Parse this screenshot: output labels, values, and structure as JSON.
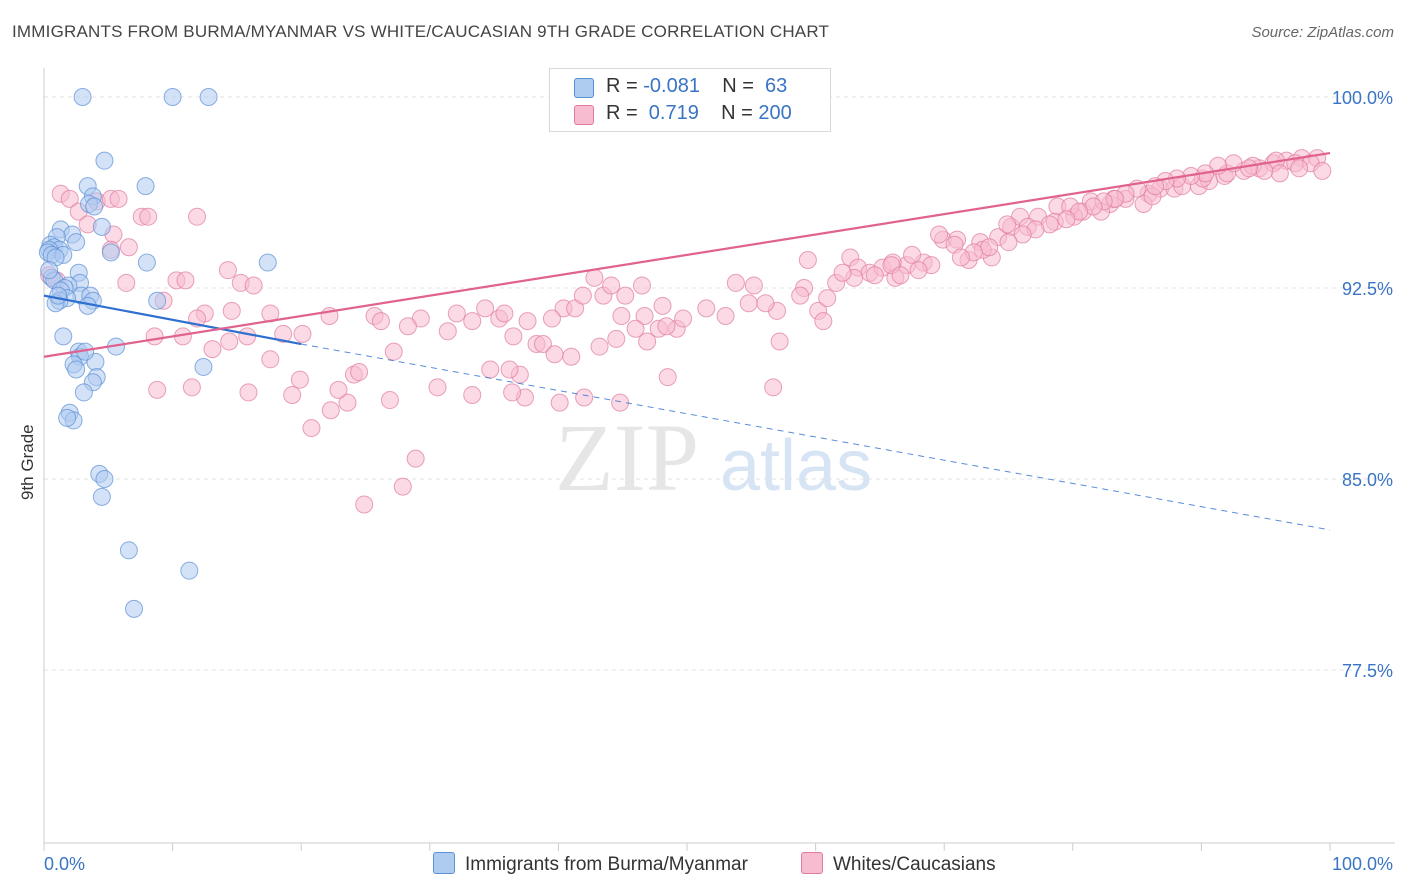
{
  "title": "IMMIGRANTS FROM BURMA/MYANMAR VS WHITE/CAUCASIAN 9TH GRADE CORRELATION CHART",
  "source": "Source: ZipAtlas.com",
  "watermark": {
    "zip": "ZIP",
    "atlas": "atlas"
  },
  "legend": {
    "rows": [
      {
        "r_label": "R = ",
        "r_value": "-0.081",
        "n_label": "N = ",
        "n_value": " 63",
        "color": "#aecbf0",
        "border": "#5b8fd6"
      },
      {
        "r_label": "R = ",
        "r_value": " 0.719",
        "n_label": "N = ",
        "n_value": "200",
        "color": "#f7bcd0",
        "border": "#e07aa0"
      }
    ]
  },
  "bottom_legend": [
    {
      "label": "Immigrants from Burma/Myanmar",
      "color": "#aecbf0",
      "border": "#5b8fd6"
    },
    {
      "label": "Whites/Caucasians",
      "color": "#f7bcd0",
      "border": "#e07aa0"
    }
  ],
  "chart_data": {
    "type": "scatter",
    "ylabel": "9th Grade",
    "xlim": [
      0,
      100
    ],
    "ylim": [
      71.5,
      101.5
    ],
    "x_tick_labels": [
      "0.0%",
      "100.0%"
    ],
    "y_ticks": [
      77.5,
      85.0,
      92.5,
      100.0
    ],
    "y_tick_labels": [
      "77.5%",
      "85.0%",
      "92.5%",
      "100.0%"
    ],
    "grid": true,
    "series": [
      {
        "name": "Immigrants from Burma/Myanmar",
        "color": "#aecbf0",
        "stroke": "#5b8fd6",
        "trend": {
          "x0": 0,
          "y0": 92.2,
          "x1": 20,
          "y1": 90.3,
          "dashed_to_x": 100,
          "dashed_to_y": 83.0,
          "color": "#2f6fd0"
        },
        "points": [
          [
            3,
            100
          ],
          [
            10,
            100
          ],
          [
            12.8,
            100
          ],
          [
            4.7,
            97.5
          ],
          [
            3.4,
            96.5
          ],
          [
            7.9,
            96.5
          ],
          [
            3.8,
            96.1
          ],
          [
            3.5,
            95.8
          ],
          [
            3.9,
            95.7
          ],
          [
            4.5,
            94.9
          ],
          [
            1.3,
            94.8
          ],
          [
            2.2,
            94.6
          ],
          [
            1.0,
            94.5
          ],
          [
            2.5,
            94.3
          ],
          [
            0.5,
            94.2
          ],
          [
            0.8,
            94.1
          ],
          [
            1.2,
            94.0
          ],
          [
            0.4,
            94.0
          ],
          [
            0.3,
            93.9
          ],
          [
            0.6,
            93.8
          ],
          [
            1.5,
            93.8
          ],
          [
            0.9,
            93.7
          ],
          [
            5.2,
            93.9
          ],
          [
            8.0,
            93.5
          ],
          [
            17.4,
            93.5
          ],
          [
            2.7,
            93.1
          ],
          [
            0.6,
            92.9
          ],
          [
            0.8,
            92.8
          ],
          [
            2.8,
            92.7
          ],
          [
            1.9,
            92.6
          ],
          [
            1.6,
            92.5
          ],
          [
            1.3,
            92.4
          ],
          [
            2.9,
            92.2
          ],
          [
            3.6,
            92.2
          ],
          [
            1.8,
            92.1
          ],
          [
            1.2,
            92.0
          ],
          [
            3.8,
            92.0
          ],
          [
            0.9,
            91.9
          ],
          [
            3.4,
            91.8
          ],
          [
            8.8,
            92.0
          ],
          [
            1.5,
            90.6
          ],
          [
            5.6,
            90.2
          ],
          [
            2.7,
            90.0
          ],
          [
            2.8,
            89.8
          ],
          [
            4.0,
            89.6
          ],
          [
            2.3,
            89.5
          ],
          [
            12.4,
            89.4
          ],
          [
            2.5,
            89.3
          ],
          [
            4.1,
            89.0
          ],
          [
            3.8,
            88.8
          ],
          [
            3.1,
            88.4
          ],
          [
            2.0,
            87.6
          ],
          [
            2.3,
            87.3
          ],
          [
            4.3,
            85.2
          ],
          [
            4.7,
            85.0
          ],
          [
            4.5,
            84.3
          ],
          [
            6.6,
            82.2
          ],
          [
            11.3,
            81.4
          ],
          [
            7.0,
            79.9
          ],
          [
            1.8,
            87.4
          ],
          [
            3.2,
            90.0
          ],
          [
            0.4,
            93.2
          ],
          [
            1.1,
            92.2
          ]
        ]
      },
      {
        "name": "Whites/Caucasians",
        "color": "#f7bcd0",
        "stroke": "#e07aa0",
        "trend": {
          "x0": 0,
          "y0": 89.8,
          "x1": 100,
          "y1": 97.8,
          "color": "#e0628f"
        },
        "points": [
          [
            1.3,
            96.2
          ],
          [
            2.0,
            96.0
          ],
          [
            2.7,
            95.5
          ],
          [
            4.1,
            95.9
          ],
          [
            5.2,
            96.0
          ],
          [
            5.8,
            96.0
          ],
          [
            7.6,
            95.3
          ],
          [
            8.1,
            95.3
          ],
          [
            11.9,
            95.3
          ],
          [
            3.4,
            95.0
          ],
          [
            5.4,
            94.6
          ],
          [
            6.6,
            94.1
          ],
          [
            5.2,
            94.0
          ],
          [
            0.4,
            93.0
          ],
          [
            1.0,
            92.8
          ],
          [
            14.3,
            93.2
          ],
          [
            10.3,
            92.8
          ],
          [
            11.0,
            92.8
          ],
          [
            15.3,
            92.7
          ],
          [
            16.3,
            92.6
          ],
          [
            6.4,
            92.7
          ],
          [
            9.3,
            92.0
          ],
          [
            12.5,
            91.5
          ],
          [
            14.6,
            91.6
          ],
          [
            11.9,
            91.3
          ],
          [
            17.6,
            91.5
          ],
          [
            22.2,
            91.4
          ],
          [
            25.7,
            91.4
          ],
          [
            29.3,
            91.3
          ],
          [
            28.3,
            91.0
          ],
          [
            26.2,
            91.2
          ],
          [
            32.1,
            91.5
          ],
          [
            33.3,
            91.2
          ],
          [
            34.3,
            91.7
          ],
          [
            31.4,
            90.8
          ],
          [
            35.4,
            91.3
          ],
          [
            35.8,
            91.5
          ],
          [
            36.5,
            90.6
          ],
          [
            34.7,
            89.3
          ],
          [
            37.6,
            91.2
          ],
          [
            38.3,
            90.3
          ],
          [
            37.0,
            89.1
          ],
          [
            33.3,
            88.3
          ],
          [
            30.6,
            88.6
          ],
          [
            37.4,
            88.2
          ],
          [
            40.4,
            91.7
          ],
          [
            41.3,
            91.7
          ],
          [
            42.8,
            92.9
          ],
          [
            41.9,
            92.2
          ],
          [
            43.5,
            92.2
          ],
          [
            39.5,
            91.3
          ],
          [
            38.8,
            90.3
          ],
          [
            44.1,
            92.6
          ],
          [
            46.5,
            92.6
          ],
          [
            45.2,
            92.2
          ],
          [
            44.9,
            91.4
          ],
          [
            46.7,
            91.4
          ],
          [
            46.9,
            90.4
          ],
          [
            47.8,
            90.9
          ],
          [
            49.2,
            90.9
          ],
          [
            48.1,
            91.8
          ],
          [
            53.8,
            92.7
          ],
          [
            55.2,
            92.6
          ],
          [
            54.8,
            91.9
          ],
          [
            57.0,
            91.6
          ],
          [
            57.2,
            90.4
          ],
          [
            56.7,
            88.6
          ],
          [
            59.1,
            92.5
          ],
          [
            60.2,
            91.6
          ],
          [
            60.6,
            91.2
          ],
          [
            60.9,
            92.1
          ],
          [
            59.4,
            93.6
          ],
          [
            62.7,
            93.7
          ],
          [
            63.3,
            93.3
          ],
          [
            64.2,
            93.1
          ],
          [
            65.2,
            93.3
          ],
          [
            66.2,
            92.9
          ],
          [
            67.1,
            93.4
          ],
          [
            68.4,
            93.5
          ],
          [
            69.9,
            94.4
          ],
          [
            71.0,
            94.4
          ],
          [
            71.9,
            93.6
          ],
          [
            73.7,
            93.7
          ],
          [
            72.8,
            94.3
          ],
          [
            74.2,
            94.5
          ],
          [
            75.2,
            94.9
          ],
          [
            75.9,
            95.3
          ],
          [
            77.3,
            95.3
          ],
          [
            78.8,
            95.7
          ],
          [
            80.8,
            95.5
          ],
          [
            81.4,
            95.9
          ],
          [
            82.9,
            95.8
          ],
          [
            84.1,
            96.0
          ],
          [
            85.9,
            96.2
          ],
          [
            86.8,
            96.4
          ],
          [
            87.9,
            96.4
          ],
          [
            89.8,
            96.5
          ],
          [
            90.6,
            96.7
          ],
          [
            91.8,
            96.9
          ],
          [
            93.3,
            97.1
          ],
          [
            94.5,
            97.2
          ],
          [
            95.6,
            97.4
          ],
          [
            96.6,
            97.5
          ],
          [
            97.8,
            97.6
          ],
          [
            99.0,
            97.6
          ],
          [
            85.5,
            95.8
          ],
          [
            82.2,
            95.5
          ],
          [
            80.1,
            95.3
          ],
          [
            78.6,
            95.1
          ],
          [
            76.5,
            94.9
          ],
          [
            73.0,
            94.0
          ],
          [
            70.8,
            94.2
          ],
          [
            67.5,
            93.8
          ],
          [
            66.0,
            93.5
          ],
          [
            64.6,
            93.0
          ],
          [
            63.0,
            92.9
          ],
          [
            61.6,
            92.7
          ],
          [
            58.8,
            92.2
          ],
          [
            56.1,
            91.9
          ],
          [
            53.0,
            91.4
          ],
          [
            51.5,
            91.7
          ],
          [
            49.7,
            91.3
          ],
          [
            48.4,
            91.0
          ],
          [
            46.0,
            90.9
          ],
          [
            44.5,
            90.5
          ],
          [
            43.2,
            90.2
          ],
          [
            41.0,
            89.8
          ],
          [
            39.7,
            89.9
          ],
          [
            36.2,
            89.3
          ],
          [
            27.2,
            90.0
          ],
          [
            24.1,
            89.1
          ],
          [
            23.6,
            88.0
          ],
          [
            22.3,
            87.7
          ],
          [
            20.8,
            87.0
          ],
          [
            19.9,
            88.9
          ],
          [
            22.9,
            88.5
          ],
          [
            24.5,
            89.2
          ],
          [
            26.9,
            88.1
          ],
          [
            28.9,
            85.8
          ],
          [
            27.9,
            84.7
          ],
          [
            24.9,
            84.0
          ],
          [
            18.6,
            90.7
          ],
          [
            20.1,
            90.7
          ],
          [
            17.6,
            89.7
          ],
          [
            13.1,
            90.1
          ],
          [
            15.8,
            90.6
          ],
          [
            14.4,
            90.4
          ],
          [
            10.8,
            90.6
          ],
          [
            8.6,
            90.6
          ],
          [
            8.8,
            88.5
          ],
          [
            11.5,
            88.6
          ],
          [
            15.9,
            88.4
          ],
          [
            19.3,
            88.3
          ],
          [
            48.5,
            89.0
          ],
          [
            44.8,
            88.0
          ],
          [
            42.0,
            88.2
          ],
          [
            40.1,
            88.0
          ],
          [
            36.4,
            88.4
          ],
          [
            62.1,
            93.1
          ],
          [
            65.9,
            93.4
          ],
          [
            69.6,
            94.6
          ],
          [
            74.9,
            95.0
          ],
          [
            79.8,
            95.7
          ],
          [
            83.2,
            96.0
          ],
          [
            86.2,
            96.1
          ],
          [
            88.5,
            96.5
          ],
          [
            90.1,
            96.8
          ],
          [
            92.0,
            97.0
          ],
          [
            94.0,
            97.3
          ],
          [
            95.8,
            97.5
          ],
          [
            97.3,
            97.4
          ],
          [
            98.5,
            97.4
          ],
          [
            99.4,
            97.1
          ],
          [
            97.6,
            97.2
          ],
          [
            96.1,
            97.0
          ],
          [
            94.9,
            97.1
          ],
          [
            93.7,
            97.2
          ],
          [
            92.5,
            97.4
          ],
          [
            91.3,
            97.3
          ],
          [
            90.3,
            97.0
          ],
          [
            89.2,
            96.9
          ],
          [
            88.1,
            96.8
          ],
          [
            87.2,
            96.7
          ],
          [
            86.4,
            96.5
          ],
          [
            85.0,
            96.4
          ],
          [
            84.1,
            96.2
          ],
          [
            83.3,
            96.0
          ],
          [
            82.4,
            95.9
          ],
          [
            81.6,
            95.7
          ],
          [
            80.5,
            95.5
          ],
          [
            79.5,
            95.2
          ],
          [
            78.2,
            95.0
          ],
          [
            77.1,
            94.8
          ],
          [
            76.1,
            94.6
          ],
          [
            75.0,
            94.3
          ],
          [
            73.5,
            94.1
          ],
          [
            72.3,
            93.9
          ],
          [
            71.3,
            93.7
          ],
          [
            69.0,
            93.4
          ],
          [
            68.0,
            93.2
          ],
          [
            66.6,
            93.0
          ]
        ]
      }
    ]
  }
}
